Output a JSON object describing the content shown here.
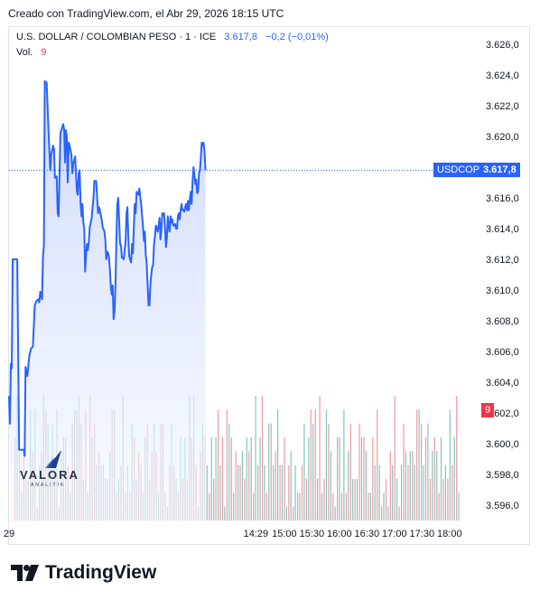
{
  "header": {
    "caption": "Creado con TradingView.com, el Abr 29, 2026 18:15 UTC"
  },
  "legend": {
    "symbol": "U.S. DOLLAR / COLOMBIAN PESO · 1 · ICE",
    "price": "3.617,8",
    "change": "−0,2 (−0,01%)",
    "volume_label": "Vol.",
    "volume_value": "9"
  },
  "badges": {
    "ticker": "USDCOP",
    "last_price": "3.617,8",
    "last_volume": "9"
  },
  "watermark": {
    "brand": "VALORA",
    "sub": "ANALITIK"
  },
  "footer": {
    "logo_text": "TradingView"
  },
  "colors": {
    "line": "#2962ff",
    "area_top": "#c9d6fb",
    "area_bottom": "#f4f7ff",
    "vol_up": "#7fc8c0",
    "vol_down": "#f39aa0",
    "badge_bg": "#2962ff",
    "vol_badge_bg": "#f23645"
  },
  "chart_data": {
    "type": "area",
    "title": "U.S. DOLLAR / COLOMBIAN PESO · 1 · ICE",
    "xlabel": "",
    "ylabel": "",
    "ylim": [
      3595.0,
      3627.0
    ],
    "y_ticks": [
      "3.596,0",
      "3.598,0",
      "3.600,0",
      "3.602,0",
      "3.604,0",
      "3.606,0",
      "3.608,0",
      "3.610,0",
      "3.612,0",
      "3.614,0",
      "3.616,0",
      "3.618,0",
      "3.620,0",
      "3.622,0",
      "3.624,0",
      "3.626,0"
    ],
    "y_tick_values": [
      3596,
      3598,
      3600,
      3602,
      3604,
      3606,
      3608,
      3610,
      3612,
      3614,
      3616,
      3618,
      3620,
      3622,
      3624,
      3626
    ],
    "x_ticks": [
      {
        "label": "29",
        "minute": 0
      },
      {
        "label": "14:29",
        "minute": 269
      },
      {
        "label": "15:00",
        "minute": 300
      },
      {
        "label": "15:30",
        "minute": 330
      },
      {
        "label": "16:00",
        "minute": 360
      },
      {
        "label": "16:30",
        "minute": 390
      },
      {
        "label": "17:00",
        "minute": 420
      },
      {
        "label": "17:30",
        "minute": 450
      },
      {
        "label": "18:00",
        "minute": 480
      }
    ],
    "x_range_minutes": [
      0,
      493
    ],
    "last_price": 3617.8,
    "grid": false,
    "series": [
      {
        "values": [
          [
            0,
            3603.1
          ],
          [
            1,
            3601.3
          ],
          [
            2,
            3605.2
          ],
          [
            3,
            3604.9
          ],
          [
            4,
            3612.0
          ],
          [
            9,
            3612.0
          ],
          [
            11,
            3599.6
          ],
          [
            14,
            3599.6
          ],
          [
            16,
            3599.6
          ],
          [
            17,
            3599.2
          ],
          [
            18,
            3605.0
          ],
          [
            20,
            3604.4
          ],
          [
            22,
            3605.7
          ],
          [
            24,
            3606.2
          ],
          [
            26,
            3606.3
          ],
          [
            28,
            3609.0
          ],
          [
            30,
            3609.3
          ],
          [
            32,
            3609.4
          ],
          [
            33,
            3609.2
          ],
          [
            34,
            3609.9
          ],
          [
            36,
            3609.4
          ],
          [
            37,
            3612.2
          ],
          [
            38,
            3612.9
          ],
          [
            39,
            3623.6
          ],
          [
            41,
            3623.5
          ],
          [
            43,
            3620.4
          ],
          [
            45,
            3617.8
          ],
          [
            46,
            3618.8
          ],
          [
            48,
            3619.4
          ],
          [
            49,
            3619.2
          ],
          [
            50,
            3617.3
          ],
          [
            52,
            3617.4
          ],
          [
            53,
            3615.0
          ],
          [
            54,
            3614.8
          ],
          [
            56,
            3620.2
          ],
          [
            57,
            3620.4
          ],
          [
            59,
            3620.8
          ],
          [
            60,
            3620.5
          ],
          [
            61,
            3618.3
          ],
          [
            62,
            3620.4
          ],
          [
            63,
            3620.0
          ],
          [
            64,
            3617.0
          ],
          [
            65,
            3619.6
          ],
          [
            66,
            3619.4
          ],
          [
            68,
            3618.8
          ],
          [
            69,
            3617.6
          ],
          [
            70,
            3618.2
          ],
          [
            72,
            3618.7
          ],
          [
            74,
            3616.4
          ],
          [
            75,
            3616.2
          ],
          [
            76,
            3617.6
          ],
          [
            77,
            3617.8
          ],
          [
            78,
            3615.6
          ],
          [
            79,
            3614.8
          ],
          [
            80,
            3615.6
          ],
          [
            81,
            3614.4
          ],
          [
            82,
            3614.0
          ],
          [
            83,
            3611.2
          ],
          [
            84,
            3612.4
          ],
          [
            85,
            3613.0
          ],
          [
            86,
            3612.6
          ],
          [
            87,
            3613.2
          ],
          [
            88,
            3614.1
          ],
          [
            90,
            3614.7
          ],
          [
            92,
            3616.0
          ],
          [
            93,
            3617.1
          ],
          [
            95,
            3617.1
          ],
          [
            97,
            3615.0
          ],
          [
            98,
            3615.4
          ],
          [
            99,
            3615.2
          ],
          [
            100,
            3614.9
          ],
          [
            101,
            3614.6
          ],
          [
            102,
            3614.1
          ],
          [
            104,
            3613.8
          ],
          [
            105,
            3613.2
          ],
          [
            106,
            3612.0
          ],
          [
            107,
            3612.5
          ],
          [
            108,
            3612.4
          ],
          [
            109,
            3612.1
          ],
          [
            110,
            3611.2
          ],
          [
            111,
            3610.2
          ],
          [
            112,
            3609.7
          ],
          [
            113,
            3610.3
          ],
          [
            114,
            3608.1
          ],
          [
            115,
            3608.7
          ],
          [
            116,
            3610.4
          ],
          [
            117,
            3613.3
          ],
          [
            118,
            3615.6
          ],
          [
            119,
            3616.0
          ],
          [
            121,
            3613.0
          ],
          [
            122,
            3612.9
          ],
          [
            123,
            3612.1
          ],
          [
            124,
            3612.1
          ],
          [
            125,
            3612.0
          ],
          [
            126,
            3612.6
          ],
          [
            127,
            3613.2
          ],
          [
            128,
            3615.0
          ],
          [
            129,
            3615.4
          ],
          [
            130,
            3613.4
          ],
          [
            131,
            3612.2
          ],
          [
            132,
            3612.0
          ],
          [
            133,
            3611.8
          ],
          [
            134,
            3613.0
          ],
          [
            135,
            3612.4
          ],
          [
            136,
            3614.1
          ],
          [
            137,
            3615.6
          ],
          [
            138,
            3615.0
          ],
          [
            139,
            3616.4
          ],
          [
            141,
            3616.2
          ],
          [
            142,
            3616.6
          ],
          [
            144,
            3615.6
          ],
          [
            145,
            3614.8
          ],
          [
            146,
            3614.1
          ],
          [
            147,
            3613.2
          ],
          [
            148,
            3613.8
          ],
          [
            149,
            3612.3
          ],
          [
            150,
            3611.8
          ],
          [
            151,
            3610.3
          ],
          [
            152,
            3609.0
          ],
          [
            153,
            3609.0
          ],
          [
            154,
            3610.3
          ],
          [
            155,
            3611.0
          ],
          [
            156,
            3611.5
          ],
          [
            157,
            3611.6
          ],
          [
            158,
            3613.0
          ],
          [
            159,
            3613.5
          ],
          [
            160,
            3614.2
          ],
          [
            161,
            3614.0
          ],
          [
            162,
            3613.8
          ],
          [
            163,
            3614.2
          ],
          [
            164,
            3614.7
          ],
          [
            165,
            3613.3
          ],
          [
            166,
            3614.0
          ],
          [
            167,
            3615.0
          ],
          [
            168,
            3614.9
          ],
          [
            169,
            3615.0
          ],
          [
            170,
            3614.0
          ],
          [
            171,
            3612.8
          ],
          [
            172,
            3613.4
          ],
          [
            173,
            3614.8
          ],
          [
            174,
            3614.2
          ],
          [
            175,
            3613.8
          ],
          [
            176,
            3614.8
          ],
          [
            177,
            3614.4
          ],
          [
            178,
            3614.6
          ],
          [
            179,
            3614.2
          ],
          [
            180,
            3614.2
          ],
          [
            181,
            3614.3
          ],
          [
            182,
            3614.0
          ],
          [
            183,
            3614.0
          ],
          [
            184,
            3614.8
          ],
          [
            185,
            3615.0
          ],
          [
            186,
            3614.6
          ],
          [
            187,
            3615.2
          ],
          [
            188,
            3615.6
          ],
          [
            189,
            3615.2
          ],
          [
            190,
            3615.2
          ],
          [
            191,
            3615.1
          ],
          [
            192,
            3615.4
          ],
          [
            193,
            3615.6
          ],
          [
            194,
            3615.2
          ],
          [
            195,
            3615.8
          ],
          [
            196,
            3615.2
          ],
          [
            197,
            3615.9
          ],
          [
            198,
            3616.4
          ],
          [
            199,
            3615.6
          ],
          [
            200,
            3617.0
          ],
          [
            201,
            3618.0
          ],
          [
            202,
            3617.5
          ],
          [
            203,
            3616.9
          ],
          [
            204,
            3617.2
          ],
          [
            205,
            3616.3
          ],
          [
            206,
            3616.4
          ],
          [
            207,
            3617.6
          ],
          [
            208,
            3617.8
          ],
          [
            209,
            3618.6
          ],
          [
            210,
            3619.6
          ],
          [
            211,
            3619.4
          ],
          [
            212,
            3619.6
          ],
          [
            213,
            3619.0
          ],
          [
            214,
            3617.8
          ]
        ]
      }
    ],
    "volume": {
      "max": 9,
      "up": [
        9,
        2,
        3,
        8,
        8,
        4,
        9,
        7,
        7,
        8,
        5,
        6,
        2,
        8,
        9,
        3,
        2,
        6,
        4,
        4,
        3,
        5,
        8,
        3,
        9,
        4,
        7,
        3,
        4,
        6,
        3,
        7,
        2,
        7,
        1,
        7,
        3,
        6,
        6,
        9,
        9,
        1,
        7,
        4,
        6,
        6,
        4,
        1,
        7,
        2,
        4,
        5,
        6,
        6,
        9,
        6,
        4,
        7,
        4,
        8,
        4,
        1,
        5,
        4,
        2,
        7,
        6,
        7,
        3,
        2,
        8,
        5,
        1,
        6,
        8,
        5,
        3,
        3,
        6,
        5,
        2,
        4,
        4,
        2,
        1,
        4,
        3,
        4,
        5,
        5,
        4,
        8,
        4,
        7,
        5,
        5,
        6,
        4,
        8,
        6,
        2
      ],
      "down": [
        6,
        5,
        5,
        3,
        5,
        1,
        5,
        8,
        4,
        4,
        1,
        6,
        4,
        7,
        8,
        7,
        8,
        9,
        7,
        5,
        4,
        3,
        8,
        2,
        4,
        2,
        2,
        6,
        5,
        2,
        7,
        5,
        5,
        7,
        2,
        4,
        4,
        2,
        3,
        3,
        6,
        4,
        5,
        6,
        2,
        3,
        8,
        6,
        8,
        6,
        5,
        4,
        3,
        5,
        2,
        4,
        9,
        2,
        7,
        5,
        4,
        6,
        4,
        1,
        2,
        4,
        3,
        8,
        8,
        9,
        3,
        7,
        2,
        6,
        2,
        2,
        7,
        3,
        7,
        6,
        2,
        6,
        8,
        1,
        3,
        5,
        9,
        1,
        7,
        4,
        5,
        8,
        7,
        6,
        3,
        6,
        2,
        3,
        3,
        4,
        9
      ]
    }
  }
}
